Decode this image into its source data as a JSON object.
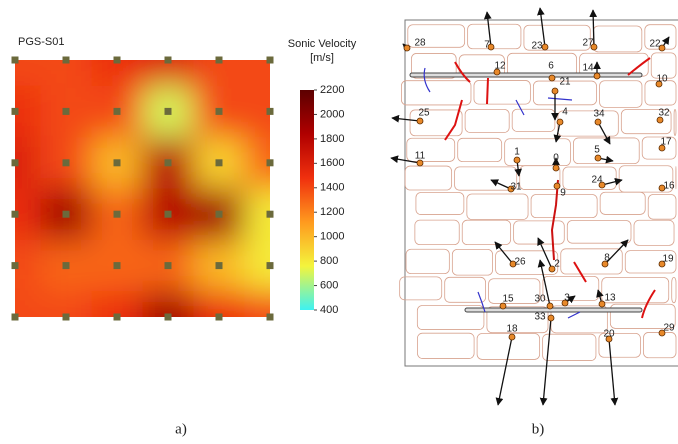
{
  "chart_data": {
    "type": "heatmap",
    "title": "PGS-S01",
    "colorbar_label": [
      "Sonic Velocity",
      "[m/s]"
    ],
    "values": [
      [
        1400,
        1400,
        1500,
        1600,
        1400,
        1400
      ],
      [
        1500,
        1400,
        1400,
        700,
        1400,
        1400
      ],
      [
        1600,
        1400,
        1000,
        1800,
        900,
        1300
      ],
      [
        1500,
        1900,
        1300,
        1800,
        1900,
        800
      ],
      [
        1400,
        1300,
        1300,
        1300,
        1000,
        800
      ],
      [
        1400,
        1400,
        1500,
        1900,
        1500,
        1400
      ]
    ],
    "zlim": [
      400,
      2200
    ],
    "zticks": [
      400,
      600,
      800,
      1000,
      1200,
      1400,
      1600,
      1800,
      2000,
      2200
    ],
    "colors": [
      "#3ef2f2",
      "#f4f43c",
      "#ff9a1e",
      "#f0300e",
      "#b00000",
      "#5c0000"
    ]
  },
  "diagram": {
    "nodes": [
      "28",
      "7",
      "23",
      "27",
      "22",
      "12",
      "6",
      "14",
      "10",
      "21",
      "25",
      "4",
      "34",
      "32",
      "17",
      "11",
      "1",
      "5",
      "0",
      "9",
      "31",
      "24",
      "16",
      "26",
      "2",
      "8",
      "19",
      "30",
      "3",
      "13",
      "15",
      "33",
      "29",
      "18",
      "20"
    ]
  },
  "captions": [
    "a)",
    "b)"
  ]
}
